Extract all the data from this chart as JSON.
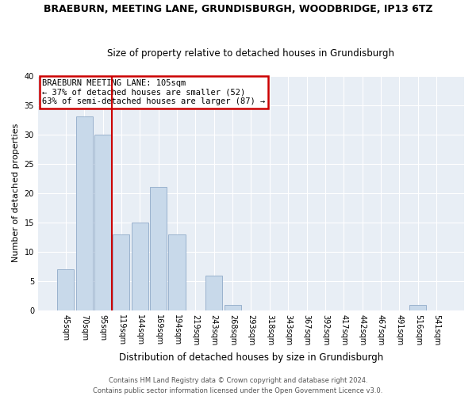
{
  "title1": "BRAEBURN, MEETING LANE, GRUNDISBURGH, WOODBRIDGE, IP13 6TZ",
  "title2": "Size of property relative to detached houses in Grundisburgh",
  "xlabel": "Distribution of detached houses by size in Grundisburgh",
  "ylabel": "Number of detached properties",
  "bin_labels": [
    "45sqm",
    "70sqm",
    "95sqm",
    "119sqm",
    "144sqm",
    "169sqm",
    "194sqm",
    "219sqm",
    "243sqm",
    "268sqm",
    "293sqm",
    "318sqm",
    "343sqm",
    "367sqm",
    "392sqm",
    "417sqm",
    "442sqm",
    "467sqm",
    "491sqm",
    "516sqm",
    "541sqm"
  ],
  "bar_values": [
    7,
    33,
    30,
    13,
    15,
    21,
    13,
    0,
    6,
    1,
    0,
    0,
    0,
    0,
    0,
    0,
    0,
    0,
    0,
    1,
    0
  ],
  "bar_color": "#c8d9ea",
  "bar_edgecolor": "#90aac8",
  "vline_color": "#cc0000",
  "vline_pos": 2.5,
  "ylim": [
    0,
    40
  ],
  "yticks": [
    0,
    5,
    10,
    15,
    20,
    25,
    30,
    35,
    40
  ],
  "annotation_title": "BRAEBURN MEETING LANE: 105sqm",
  "annotation_line1": "← 37% of detached houses are smaller (52)",
  "annotation_line2": "63% of semi-detached houses are larger (87) →",
  "annotation_box_edgecolor": "#cc0000",
  "footer_line1": "Contains HM Land Registry data © Crown copyright and database right 2024.",
  "footer_line2": "Contains public sector information licensed under the Open Government Licence v3.0.",
  "bg_color": "#ffffff",
  "plot_bg_color": "#e8eef5",
  "grid_color": "#ffffff",
  "title1_fontsize": 9,
  "title2_fontsize": 8.5,
  "ylabel_fontsize": 8,
  "xlabel_fontsize": 8.5,
  "tick_fontsize": 7,
  "annot_fontsize": 7.5,
  "footer_fontsize": 6
}
